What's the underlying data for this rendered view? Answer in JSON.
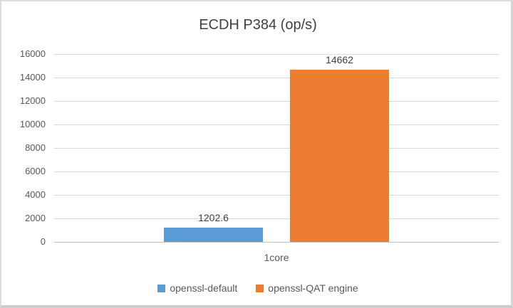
{
  "chart_data": {
    "type": "bar",
    "title": "ECDH P384 (op/s)",
    "xlabel": "",
    "ylabel": "",
    "categories": [
      "1core"
    ],
    "series": [
      {
        "name": "openssl-default",
        "values": [
          1202.6
        ],
        "data_label": "1202.6",
        "color": "#5b9bd5"
      },
      {
        "name": "openssl-QAT engine",
        "values": [
          14662
        ],
        "data_label": "14662",
        "color": "#ed7d31"
      }
    ],
    "ylim": [
      0,
      16000
    ],
    "ytick_interval": 2000,
    "yticks": [
      0,
      2000,
      4000,
      6000,
      8000,
      10000,
      12000,
      14000,
      16000
    ],
    "grid": true,
    "gridline_color": "#d9d9d9",
    "axis_text_color": "#595959",
    "title_color": "#404040",
    "legend_position": "bottom",
    "legend": [
      "openssl-default",
      "openssl-QAT engine"
    ]
  }
}
